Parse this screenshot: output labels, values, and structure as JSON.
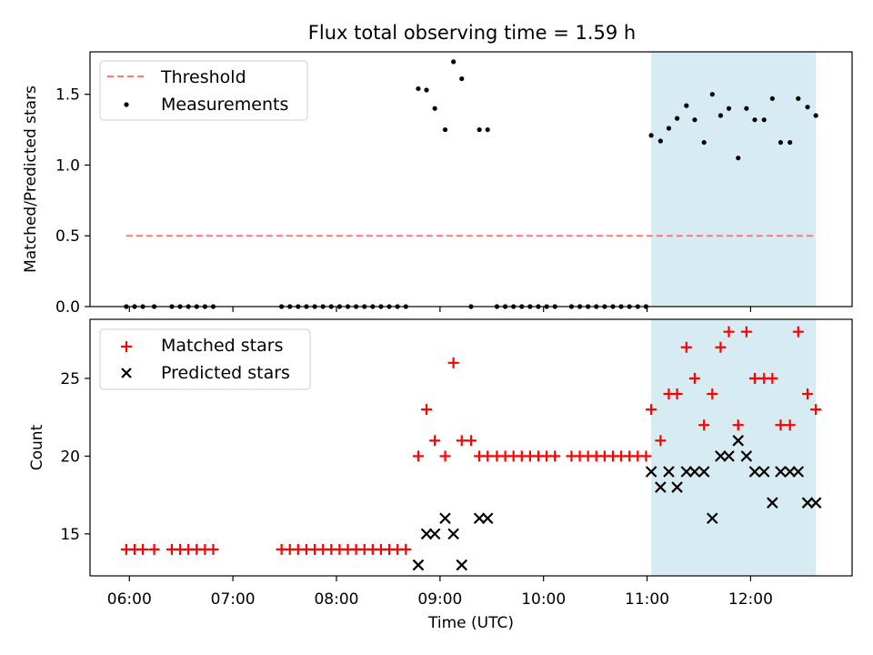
{
  "chart_data": [
    {
      "type": "scatter",
      "title": "Flux total observing time = 1.59 h",
      "xlabel": "",
      "ylabel": "Matched/Predicted stars",
      "xlim_hours": [
        5.62,
        12.98
      ],
      "ylim": [
        0,
        1.8
      ],
      "y_ticks": [
        0.0,
        0.5,
        1.0,
        1.5
      ],
      "y_tick_labels": [
        "0.0",
        "0.5",
        "1.0",
        "1.5"
      ],
      "x_ticks_hours": [
        6,
        7,
        8,
        9,
        10,
        11,
        12
      ],
      "shaded_span_hours": [
        11.04,
        12.63
      ],
      "shade_color": "#add8e6",
      "threshold": {
        "name": "Threshold",
        "y": 0.5,
        "x_range": [
          5.97,
          12.63
        ],
        "color": "#ff7777"
      },
      "legend": [
        "Threshold",
        "Measurements"
      ],
      "series": [
        {
          "name": "Measurements",
          "marker": "dot",
          "color": "#000000",
          "x": [
            5.97,
            6.05,
            6.13,
            6.24,
            6.41,
            6.49,
            6.57,
            6.65,
            6.73,
            6.81,
            7.47,
            7.55,
            7.63,
            7.71,
            7.79,
            7.87,
            7.95,
            8.03,
            8.11,
            8.19,
            8.27,
            8.35,
            8.43,
            8.51,
            8.59,
            8.67,
            8.79,
            8.87,
            8.95,
            9.05,
            9.13,
            9.21,
            9.3,
            9.38,
            9.46,
            9.55,
            9.63,
            9.71,
            9.79,
            9.87,
            9.95,
            10.03,
            10.11,
            10.27,
            10.35,
            10.43,
            10.51,
            10.59,
            10.67,
            10.75,
            10.83,
            10.91,
            10.99,
            11.04,
            11.13,
            11.21,
            11.29,
            11.38,
            11.46,
            11.55,
            11.63,
            11.71,
            11.79,
            11.88,
            11.96,
            12.04,
            12.13,
            12.21,
            12.29,
            12.38,
            12.46,
            12.55,
            12.63
          ],
          "y": [
            0,
            0,
            0,
            0,
            0,
            0,
            0,
            0,
            0,
            0,
            0,
            0,
            0,
            0,
            0,
            0,
            0,
            0,
            0,
            0,
            0,
            0,
            0,
            0,
            0,
            0,
            1.54,
            1.53,
            1.4,
            1.25,
            1.73,
            1.61,
            0,
            1.25,
            1.25,
            0,
            0,
            0,
            0,
            0,
            0,
            0,
            0,
            0,
            0,
            0,
            0,
            0,
            0,
            0,
            0,
            0,
            0,
            1.21,
            1.17,
            1.26,
            1.33,
            1.42,
            1.32,
            1.16,
            1.5,
            1.35,
            1.4,
            1.05,
            1.4,
            1.32,
            1.32,
            1.47,
            1.16,
            1.16,
            1.47,
            1.41,
            1.35
          ]
        }
      ]
    },
    {
      "type": "scatter",
      "title": "",
      "xlabel": "Time (UTC)",
      "ylabel": "Count",
      "xlim_hours": [
        5.62,
        12.98
      ],
      "ylim": [
        12.3,
        28.8
      ],
      "y_ticks": [
        15,
        20,
        25
      ],
      "y_tick_labels": [
        "15",
        "20",
        "25"
      ],
      "x_ticks_hours": [
        6,
        7,
        8,
        9,
        10,
        11,
        12
      ],
      "x_tick_labels": [
        "06:00",
        "07:00",
        "08:00",
        "09:00",
        "10:00",
        "11:00",
        "12:00"
      ],
      "shaded_span_hours": [
        11.04,
        12.63
      ],
      "shade_color": "#add8e6",
      "legend": [
        "Matched stars",
        "Predicted stars"
      ],
      "series": [
        {
          "name": "Matched stars",
          "marker": "plus",
          "color": "#ff0000",
          "x": [
            5.97,
            6.05,
            6.13,
            6.24,
            6.41,
            6.49,
            6.57,
            6.65,
            6.73,
            6.81,
            7.47,
            7.55,
            7.63,
            7.71,
            7.79,
            7.87,
            7.95,
            8.03,
            8.11,
            8.19,
            8.27,
            8.35,
            8.43,
            8.51,
            8.59,
            8.67,
            8.79,
            8.87,
            8.95,
            9.05,
            9.13,
            9.21,
            9.3,
            9.38,
            9.46,
            9.55,
            9.63,
            9.71,
            9.79,
            9.87,
            9.95,
            10.03,
            10.11,
            10.27,
            10.35,
            10.43,
            10.51,
            10.59,
            10.67,
            10.75,
            10.83,
            10.91,
            10.99,
            11.04,
            11.13,
            11.21,
            11.29,
            11.38,
            11.46,
            11.55,
            11.63,
            11.71,
            11.79,
            11.88,
            11.96,
            12.04,
            12.13,
            12.21,
            12.29,
            12.38,
            12.46,
            12.55,
            12.63
          ],
          "y": [
            14,
            14,
            14,
            14,
            14,
            14,
            14,
            14,
            14,
            14,
            14,
            14,
            14,
            14,
            14,
            14,
            14,
            14,
            14,
            14,
            14,
            14,
            14,
            14,
            14,
            14,
            20,
            23,
            21,
            20,
            26,
            21,
            21,
            20,
            20,
            20,
            20,
            20,
            20,
            20,
            20,
            20,
            20,
            20,
            20,
            20,
            20,
            20,
            20,
            20,
            20,
            20,
            20,
            23,
            21,
            24,
            24,
            27,
            25,
            22,
            24,
            27,
            28,
            22,
            28,
            25,
            25,
            25,
            22,
            22,
            28,
            24,
            23
          ]
        },
        {
          "name": "Predicted stars",
          "marker": "x",
          "color": "#000000",
          "x": [
            8.79,
            8.87,
            8.95,
            9.05,
            9.13,
            9.21,
            9.38,
            9.46,
            11.04,
            11.13,
            11.21,
            11.29,
            11.38,
            11.46,
            11.55,
            11.63,
            11.71,
            11.79,
            11.88,
            11.96,
            12.04,
            12.13,
            12.21,
            12.29,
            12.38,
            12.46,
            12.55,
            12.63
          ],
          "y": [
            13,
            15,
            15,
            16,
            15,
            13,
            16,
            16,
            19,
            18,
            19,
            18,
            19,
            19,
            19,
            16,
            20,
            20,
            21,
            20,
            19,
            19,
            17,
            19,
            19,
            19,
            17,
            17
          ]
        }
      ]
    }
  ]
}
